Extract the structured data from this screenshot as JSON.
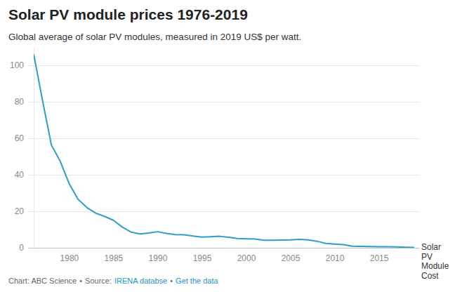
{
  "chart_data": {
    "type": "line",
    "title": "Solar PV module prices 1976-2019",
    "subtitle": "Global average of solar PV modules, measured in 2019 US$ per watt.",
    "x": [
      1976,
      1977,
      1978,
      1979,
      1980,
      1981,
      1982,
      1983,
      1984,
      1985,
      1986,
      1987,
      1988,
      1989,
      1990,
      1991,
      1992,
      1993,
      1994,
      1995,
      1996,
      1997,
      1998,
      1999,
      2000,
      2001,
      2002,
      2003,
      2004,
      2005,
      2006,
      2007,
      2008,
      2009,
      2010,
      2011,
      2012,
      2013,
      2014,
      2015,
      2016,
      2017,
      2018,
      2019
    ],
    "series": [
      {
        "name": "Solar PV Module Cost",
        "color": "#2a9fc7",
        "values": [
          106.1,
          80.6,
          56.3,
          47.4,
          35.2,
          26.6,
          22.1,
          19.0,
          17.2,
          15.1,
          11.4,
          8.6,
          7.6,
          8.1,
          8.8,
          7.9,
          7.2,
          7.1,
          6.4,
          5.9,
          6.1,
          6.3,
          5.8,
          5.1,
          4.9,
          4.8,
          4.1,
          4.1,
          4.2,
          4.3,
          4.6,
          4.3,
          3.6,
          2.4,
          2.0,
          1.7,
          0.85,
          0.75,
          0.72,
          0.61,
          0.53,
          0.44,
          0.32,
          0.24
        ]
      }
    ],
    "xlim": [
      1976,
      2019
    ],
    "xticks": [
      1980,
      1985,
      1990,
      1995,
      2000,
      2005,
      2010,
      2015
    ],
    "ylim": [
      0,
      110
    ],
    "yticks": [
      0,
      20,
      40,
      60,
      80,
      100
    ],
    "grid": true,
    "credits": {
      "chart": "Chart: ABC Science",
      "separator": "•",
      "source_label": "Source:",
      "source": "IRENA databse",
      "link": "Get the data"
    }
  }
}
